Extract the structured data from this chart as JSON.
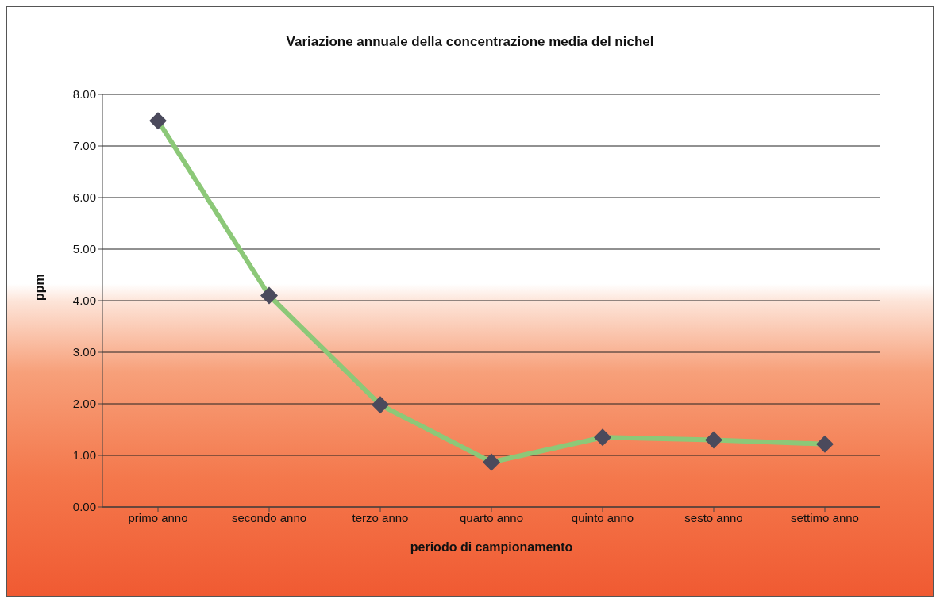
{
  "chart_data": {
    "type": "line",
    "title": "Variazione annuale della concentrazione media del nichel",
    "xlabel": "periodo di campionamento",
    "ylabel": "ppm",
    "categories": [
      "primo anno",
      "secondo anno",
      "terzo anno",
      "quarto anno",
      "quinto anno",
      "sesto anno",
      "settimo anno"
    ],
    "series": [
      {
        "color": "#8cc878",
        "values": [
          7.49,
          4.1,
          1.98,
          0.87,
          1.35,
          1.3,
          1.22
        ]
      }
    ],
    "ylim": [
      0,
      8
    ],
    "yticks": [
      {
        "value": 0,
        "label": "0.00"
      },
      {
        "value": 1,
        "label": "1.00"
      },
      {
        "value": 2,
        "label": "2.00"
      },
      {
        "value": 3,
        "label": "3.00"
      },
      {
        "value": 4,
        "label": "4.00"
      },
      {
        "value": 5,
        "label": "5.00"
      },
      {
        "value": 6,
        "label": "6.00"
      },
      {
        "value": 7,
        "label": "7.00"
      },
      {
        "value": 8,
        "label": "8.00"
      }
    ],
    "grid": "y",
    "legend": false,
    "marker": "diamond",
    "line_style": "solid"
  }
}
